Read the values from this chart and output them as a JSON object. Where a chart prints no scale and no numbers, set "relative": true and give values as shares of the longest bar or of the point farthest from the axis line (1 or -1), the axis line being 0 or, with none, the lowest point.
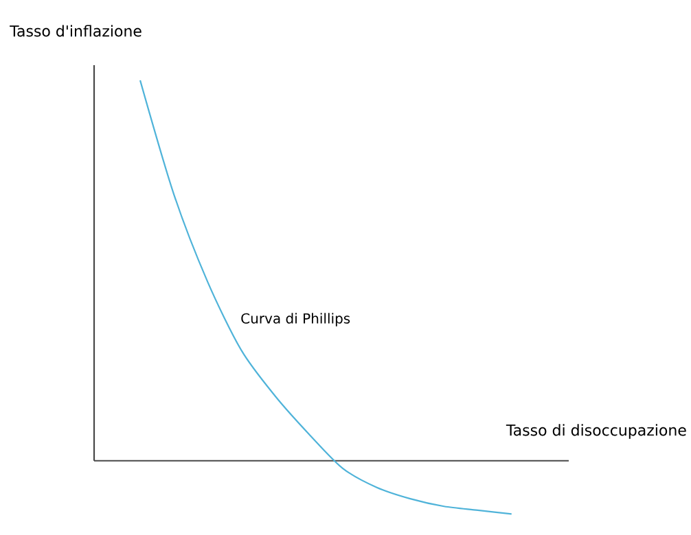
{
  "chart_data": {
    "type": "line",
    "relative": true,
    "xlabel": "Tasso di disoccupazione",
    "ylabel": "Tasso d'inflazione",
    "categories": [
      null,
      null,
      null,
      null,
      null,
      null,
      null,
      null,
      null,
      null,
      null,
      null
    ],
    "series": [
      {
        "color": "#4fb3d9",
        "values": [
          1.0,
          0.7,
          0.47,
          0.29,
          0.17,
          0.07,
          -0.02,
          -0.07,
          -0.1,
          -0.12,
          -0.13,
          -0.14
        ]
      }
    ],
    "annotations": [
      "Curva di Phillips"
    ]
  }
}
